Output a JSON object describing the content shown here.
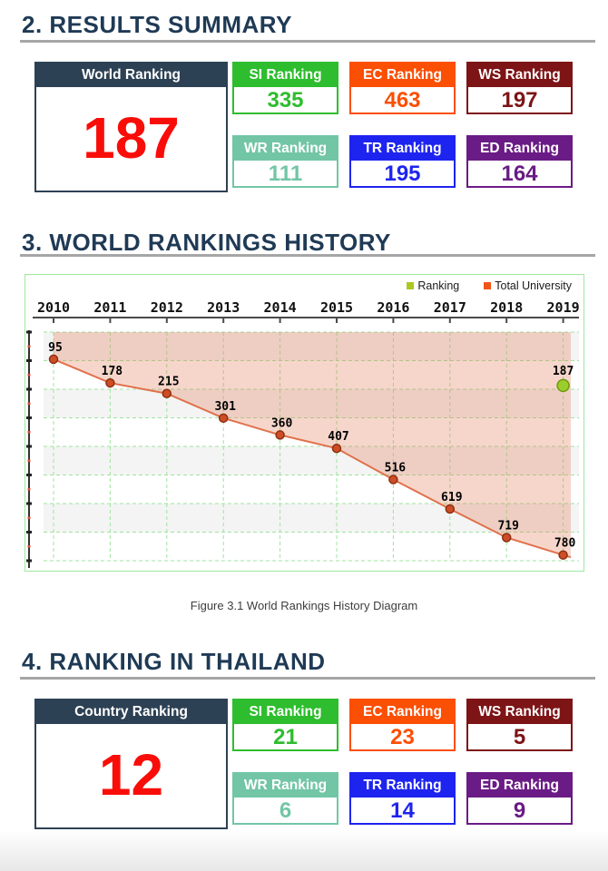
{
  "colors": {
    "navy": "#2d4154",
    "heading_navy": "#1f3a55",
    "rule_gray": "#a6a6a6",
    "value_red": "#f90d09",
    "chart_border": "#9fe89f"
  },
  "summary": {
    "heading": "2. RESULTS SUMMARY",
    "main_card": {
      "label": "World Ranking",
      "value": "187"
    },
    "cards": [
      {
        "label": "SI Ranking",
        "value": "335",
        "color": "#2ebd2e"
      },
      {
        "label": "EC Ranking",
        "value": "463",
        "color": "#fb4f04"
      },
      {
        "label": "WS Ranking",
        "value": "197",
        "color": "#7d1416"
      },
      {
        "label": "WR Ranking",
        "value": "111",
        "color": "#72c6a5"
      },
      {
        "label": "TR Ranking",
        "value": "195",
        "color": "#1d24ef"
      },
      {
        "label": "ED Ranking",
        "value": "164",
        "color": "#6a1b85"
      }
    ]
  },
  "history": {
    "heading": "3. WORLD RANKINGS HISTORY",
    "caption": "Figure 3.1 World Rankings History Diagram"
  },
  "chart_data": {
    "type": "line",
    "x": [
      2010,
      2011,
      2012,
      2013,
      2014,
      2015,
      2016,
      2017,
      2018,
      2019
    ],
    "series": [
      {
        "name": "Total University",
        "values": [
          95,
          178,
          215,
          301,
          360,
          407,
          516,
          619,
          719,
          780
        ]
      },
      {
        "name": "Ranking",
        "points": [
          {
            "x": 2019,
            "value": 187
          }
        ]
      }
    ],
    "ylim": [
      0,
      800
    ],
    "x_axis_position": "top",
    "y_axis_labels": false,
    "grid": "dashed",
    "legend_position": "top-right",
    "legend": [
      {
        "label": "Ranking",
        "color": "#abc822"
      },
      {
        "label": "Total University",
        "color": "#f2551a"
      }
    ],
    "style": {
      "band": "#f4f4f4",
      "grid": "#9fe49f",
      "axis": "#4a4a4a",
      "area": "#e07654",
      "area_opacity": 0.3,
      "line": "#e0714b",
      "dot": "#cd4d27",
      "dot_border": "#8e3010",
      "rank_dot": "#9ccd2f",
      "rank_dot_border": "#6d9b0a"
    }
  },
  "thailand": {
    "heading": "4. RANKING IN THAILAND",
    "main_card": {
      "label": "Country Ranking",
      "value": "12"
    },
    "cards": [
      {
        "label": "SI Ranking",
        "value": "21",
        "color": "#2ebd2e"
      },
      {
        "label": "EC Ranking",
        "value": "23",
        "color": "#fb4f04"
      },
      {
        "label": "WS Ranking",
        "value": "5",
        "color": "#7d1416"
      },
      {
        "label": "WR Ranking",
        "value": "6",
        "color": "#72c6a5"
      },
      {
        "label": "TR Ranking",
        "value": "14",
        "color": "#1d24ef"
      },
      {
        "label": "ED Ranking",
        "value": "9",
        "color": "#6a1b85"
      }
    ]
  }
}
